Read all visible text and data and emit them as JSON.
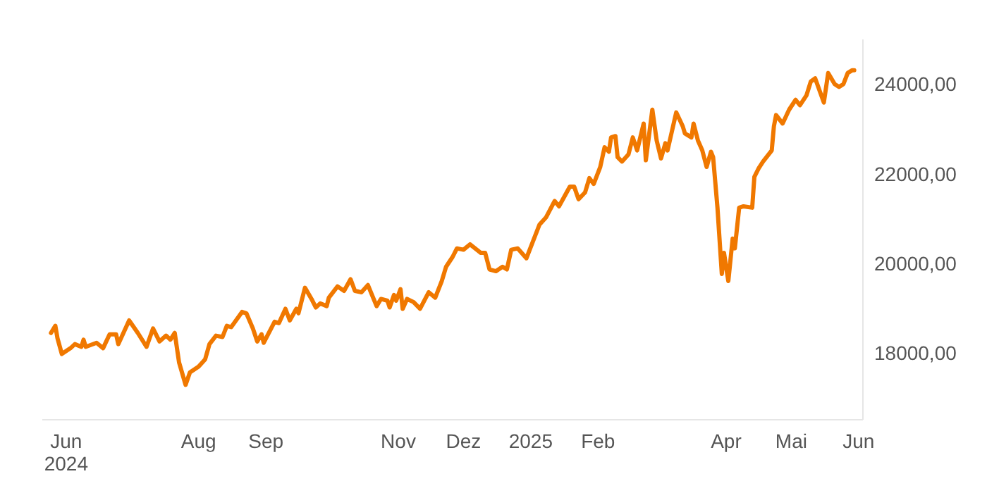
{
  "chart_data": {
    "type": "line",
    "marker": "none",
    "line_style": "solid",
    "xlim": [
      "2024-05-21",
      "2025-06-03"
    ],
    "xticks": [
      {
        "value": "2024-06-01",
        "label": "Jun\n2024"
      },
      {
        "value": "2024-08-01",
        "label": "Aug"
      },
      {
        "value": "2024-09-01",
        "label": "Sep"
      },
      {
        "value": "2024-11-01",
        "label": "Nov"
      },
      {
        "value": "2024-12-01",
        "label": "Dez"
      },
      {
        "value": "2025-01-01",
        "label": "2025"
      },
      {
        "value": "2025-02-01",
        "label": "Feb"
      },
      {
        "value": "2025-04-01",
        "label": "Apr"
      },
      {
        "value": "2025-05-01",
        "label": "Mai"
      },
      {
        "value": "2025-06-01",
        "label": "Jun"
      }
    ],
    "ylim": [
      16500,
      25000
    ],
    "yticks": [
      {
        "value": 18000,
        "label": "18000,00"
      },
      {
        "value": 20000,
        "label": "20000,00"
      },
      {
        "value": 22000,
        "label": "22000,00"
      },
      {
        "value": 24000,
        "label": "24000,00"
      }
    ],
    "x": [
      "2024-05-25",
      "2024-05-27",
      "2024-05-28",
      "2024-05-30",
      "2024-06-03",
      "2024-06-05",
      "2024-06-08",
      "2024-06-09",
      "2024-06-10",
      "2024-06-15",
      "2024-06-18",
      "2024-06-21",
      "2024-06-24",
      "2024-06-25",
      "2024-06-30",
      "2024-07-04",
      "2024-07-08",
      "2024-07-11",
      "2024-07-14",
      "2024-07-17",
      "2024-07-19",
      "2024-07-21",
      "2024-07-23",
      "2024-07-26",
      "2024-07-28",
      "2024-08-01",
      "2024-08-04",
      "2024-08-06",
      "2024-08-09",
      "2024-08-12",
      "2024-08-14",
      "2024-08-16",
      "2024-08-21",
      "2024-08-23",
      "2024-08-26",
      "2024-08-28",
      "2024-08-30",
      "2024-08-31",
      "2024-09-05",
      "2024-09-07",
      "2024-09-10",
      "2024-09-12",
      "2024-09-15",
      "2024-09-16",
      "2024-09-19",
      "2024-09-22",
      "2024-09-24",
      "2024-09-26",
      "2024-09-29",
      "2024-09-30",
      "2024-10-04",
      "2024-10-07",
      "2024-10-10",
      "2024-10-12",
      "2024-10-15",
      "2024-10-18",
      "2024-10-22",
      "2024-10-24",
      "2024-10-27",
      "2024-10-28",
      "2024-10-30",
      "2024-10-31",
      "2024-11-02",
      "2024-11-03",
      "2024-11-05",
      "2024-11-08",
      "2024-11-11",
      "2024-11-15",
      "2024-11-18",
      "2024-11-21",
      "2024-11-23",
      "2024-11-26",
      "2024-11-28",
      "2024-12-01",
      "2024-12-04",
      "2024-12-09",
      "2024-12-11",
      "2024-12-13",
      "2024-12-16",
      "2024-12-19",
      "2024-12-21",
      "2024-12-23",
      "2024-12-26",
      "2024-12-30",
      "2025-01-05",
      "2025-01-08",
      "2025-01-12",
      "2025-01-14",
      "2025-01-19",
      "2025-01-21",
      "2025-01-23",
      "2025-01-26",
      "2025-01-28",
      "2025-01-30",
      "2025-02-02",
      "2025-02-04",
      "2025-02-06",
      "2025-02-07",
      "2025-02-09",
      "2025-02-10",
      "2025-02-12",
      "2025-02-15",
      "2025-02-17",
      "2025-02-19",
      "2025-02-22",
      "2025-02-23",
      "2025-02-26",
      "2025-02-28",
      "2025-03-02",
      "2025-03-04",
      "2025-03-05",
      "2025-03-09",
      "2025-03-12",
      "2025-03-13",
      "2025-03-16",
      "2025-03-17",
      "2025-03-19",
      "2025-03-21",
      "2025-03-23",
      "2025-03-25",
      "2025-03-26",
      "2025-03-28",
      "2025-03-30",
      "2025-03-31",
      "2025-04-02",
      "2025-04-04",
      "2025-04-05",
      "2025-04-07",
      "2025-04-09",
      "2025-04-13",
      "2025-04-14",
      "2025-04-16",
      "2025-04-18",
      "2025-04-22",
      "2025-04-23",
      "2025-04-24",
      "2025-04-27",
      "2025-04-30",
      "2025-05-03",
      "2025-05-05",
      "2025-05-08",
      "2025-05-10",
      "2025-05-12",
      "2025-05-16",
      "2025-05-18",
      "2025-05-21",
      "2025-05-23",
      "2025-05-25",
      "2025-05-27",
      "2025-05-29",
      "2025-05-30"
    ],
    "series": [
      {
        "color": "#f07800",
        "values": [
          18440,
          18600,
          18320,
          17970,
          18100,
          18190,
          18130,
          18290,
          18130,
          18220,
          18100,
          18410,
          18410,
          18190,
          18720,
          18440,
          18130,
          18540,
          18250,
          18380,
          18290,
          18440,
          17780,
          17280,
          17560,
          17690,
          17850,
          18190,
          18380,
          18350,
          18600,
          18570,
          18910,
          18880,
          18540,
          18250,
          18410,
          18220,
          18690,
          18660,
          18980,
          18720,
          18980,
          18880,
          19450,
          19200,
          19010,
          19100,
          19040,
          19230,
          19480,
          19380,
          19640,
          19380,
          19350,
          19510,
          19040,
          19200,
          19160,
          19010,
          19290,
          19160,
          19420,
          18980,
          19200,
          19130,
          18980,
          19350,
          19230,
          19600,
          19920,
          20140,
          20330,
          20300,
          20420,
          20230,
          20230,
          19860,
          19820,
          19920,
          19860,
          20300,
          20330,
          20110,
          20860,
          21020,
          21390,
          21270,
          21710,
          21710,
          21430,
          21580,
          21900,
          21770,
          22150,
          22590,
          22490,
          22810,
          22840,
          22370,
          22270,
          22430,
          22810,
          22520,
          23120,
          22300,
          23430,
          22740,
          22340,
          22680,
          22520,
          23370,
          23060,
          22900,
          22810,
          23120,
          22740,
          22520,
          22150,
          22490,
          22370,
          21240,
          19760,
          20230,
          19600,
          20550,
          20330,
          21240,
          21270,
          21240,
          21930,
          22120,
          22270,
          22520,
          23060,
          23310,
          23120,
          23430,
          23650,
          23530,
          23750,
          24060,
          24130,
          23590,
          24250,
          24000,
          23940,
          24000,
          24250,
          24310,
          24310
        ]
      }
    ]
  }
}
